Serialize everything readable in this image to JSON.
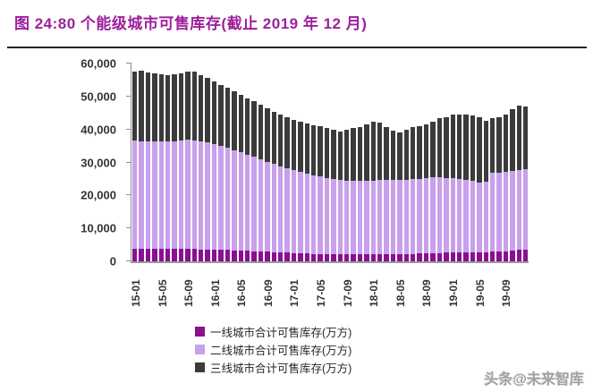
{
  "header": {
    "title": "图 24:80 个能级城市可售库存(截止 2019 年 12 月)"
  },
  "watermark": {
    "text": "头条@未来智库"
  },
  "colors": {
    "title": "#9C1F9C",
    "tier1": "#8A1090",
    "tier2": "#C9A0EC",
    "tier3": "#3B3B3B",
    "axis": "#8f8f8f",
    "tick_text": "#333333"
  },
  "chart_data": {
    "type": "bar",
    "stacked": true,
    "title": "80 个能级城市可售库存",
    "ylabel": "",
    "xlabel": "",
    "ylim": [
      0,
      60000
    ],
    "ytick_step": 10000,
    "ytick_labels": [
      "0",
      "10,000",
      "20,000",
      "30,000",
      "40,000",
      "50,000",
      "60,000"
    ],
    "grid": false,
    "legend_position": "bottom",
    "x_tick_every": 4,
    "x": [
      "15-01",
      "15-02",
      "15-03",
      "15-04",
      "15-05",
      "15-06",
      "15-07",
      "15-08",
      "15-09",
      "15-10",
      "15-11",
      "15-12",
      "16-01",
      "16-02",
      "16-03",
      "16-04",
      "16-05",
      "16-06",
      "16-07",
      "16-08",
      "16-09",
      "16-10",
      "16-11",
      "16-12",
      "17-01",
      "17-02",
      "17-03",
      "17-04",
      "17-05",
      "17-06",
      "17-07",
      "17-08",
      "17-09",
      "17-10",
      "17-11",
      "17-12",
      "18-01",
      "18-02",
      "18-03",
      "18-04",
      "18-05",
      "18-06",
      "18-07",
      "18-08",
      "18-09",
      "18-10",
      "18-11",
      "18-12",
      "19-01",
      "19-02",
      "19-03",
      "19-04",
      "19-05",
      "19-06",
      "19-07",
      "19-08",
      "19-09",
      "19-10",
      "19-11",
      "19-12"
    ],
    "series": [
      {
        "name": "一线城市合计可售库存(万方)",
        "color": "#8A1090",
        "values": [
          3900,
          3900,
          3900,
          3800,
          3800,
          3800,
          3800,
          3800,
          3800,
          3700,
          3600,
          3600,
          3500,
          3400,
          3400,
          3300,
          3300,
          3200,
          3100,
          3000,
          2900,
          2800,
          2700,
          2600,
          2500,
          2500,
          2400,
          2300,
          2300,
          2200,
          2200,
          2100,
          2100,
          2100,
          2100,
          2200,
          2200,
          2200,
          2200,
          2200,
          2200,
          2300,
          2300,
          2400,
          2400,
          2500,
          2500,
          2600,
          2600,
          2600,
          2700,
          2700,
          2800,
          2800,
          2900,
          3000,
          3100,
          3300,
          3400,
          3500
        ]
      },
      {
        "name": "二线城市合计可售库存(万方)",
        "color": "#C9A0EC",
        "values": [
          32700,
          32600,
          32600,
          32600,
          32600,
          32600,
          32700,
          32800,
          33000,
          33000,
          32700,
          32400,
          32000,
          31600,
          31000,
          30500,
          29900,
          29200,
          28600,
          28000,
          27300,
          26700,
          26100,
          25600,
          25200,
          24700,
          24300,
          23900,
          23400,
          23000,
          22700,
          22600,
          22400,
          22300,
          22300,
          22200,
          22300,
          22400,
          22400,
          22500,
          22500,
          22500,
          22600,
          22700,
          22900,
          23000,
          22900,
          22700,
          22600,
          22400,
          22100,
          21700,
          21200,
          21400,
          23900,
          24000,
          24100,
          24200,
          24300,
          24400
        ]
      },
      {
        "name": "三线城市合计可售库存(万方)",
        "color": "#3B3B3B",
        "values": [
          21000,
          21400,
          20900,
          20600,
          20300,
          20200,
          20300,
          20400,
          20900,
          20800,
          20200,
          19800,
          19100,
          18600,
          18200,
          17800,
          17300,
          17100,
          16800,
          16500,
          16200,
          15900,
          15600,
          15400,
          15300,
          15200,
          15200,
          15200,
          15300,
          15200,
          14900,
          14700,
          15300,
          16000,
          16400,
          17200,
          17900,
          17400,
          16200,
          14900,
          14300,
          15200,
          15700,
          15900,
          16200,
          16900,
          18000,
          18500,
          19400,
          19400,
          19800,
          19800,
          19600,
          18400,
          16600,
          16800,
          17200,
          18700,
          19600,
          19100
        ]
      }
    ]
  }
}
